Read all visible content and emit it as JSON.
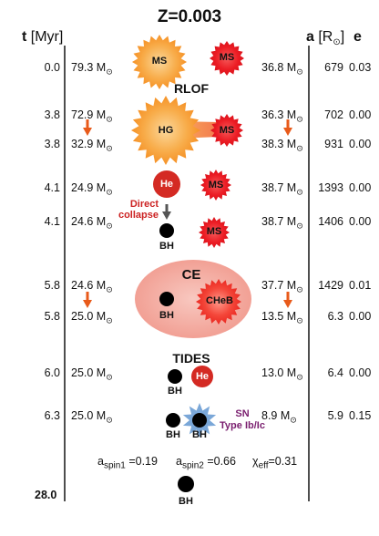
{
  "title": "Z=0.003",
  "headers": {
    "t_bold": "t",
    "t_unit": "[Myr]",
    "a_bold": "a",
    "a_unit": "[R",
    "a_sun": "⊙",
    "a_close": "]",
    "e": "e"
  },
  "rows": [
    {
      "t": "0.0",
      "m1": "79.3 M",
      "m2": "36.8 M",
      "a": "679",
      "e": "0.03"
    },
    {
      "t": "3.8",
      "m1": "72.9 M",
      "m2": "36.3 M",
      "a": "702",
      "e": "0.00"
    },
    {
      "t": "3.8",
      "m1": "32.9 M",
      "m2": "38.3 M",
      "a": "931",
      "e": "0.00"
    },
    {
      "t": "4.1",
      "m1": "24.9 M",
      "m2": "38.7 M",
      "a": "1393",
      "e": "0.00"
    },
    {
      "t": "4.1",
      "m1": "24.6 M",
      "m2": "38.7 M",
      "a": "1406",
      "e": "0.00"
    },
    {
      "t": "5.8",
      "m1": "24.6 M",
      "m2": "37.7 M",
      "a": "1429",
      "e": "0.01"
    },
    {
      "t": "5.8",
      "m1": "25.0 M",
      "m2": "13.5 M",
      "a": "6.3",
      "e": "0.00"
    },
    {
      "t": "6.0",
      "m1": "25.0 M",
      "m2": "13.0 M",
      "a": "6.4",
      "e": "0.00"
    },
    {
      "t": "6.3",
      "m1": "25.0 M",
      "m2": "8.9 M",
      "a": "5.9",
      "e": "0.15"
    }
  ],
  "sun_symbol": "⊙",
  "final_time": "28.0",
  "events": {
    "rlof": "RLOF",
    "ce": "CE",
    "tides": "TIDES",
    "direct_collapse": [
      "Direct",
      "collapse"
    ],
    "sn": [
      "SN",
      "Type Ib/Ic"
    ]
  },
  "stars": {
    "ms": "MS",
    "hg": "HG",
    "he": "He",
    "cheb": "CHeB",
    "bh": "BH"
  },
  "spins": {
    "spin1_prefix": "a",
    "spin1_sub": "spin1",
    "spin1_val": " =0.19",
    "spin2_prefix": "a",
    "spin2_sub": "spin2",
    "spin2_val": " =0.66",
    "chi_prefix": "χ",
    "chi_sub": "eff",
    "chi_val": "=0.31"
  },
  "colors": {
    "ms_secondary": "#e8101a",
    "ms_primary": "#f7941d",
    "he": "#d42a23",
    "arrow": "#e85a1a",
    "gray_arrow": "#555555",
    "ce_envelope": "#f4a9a0",
    "sn": "#7aa7d8"
  }
}
